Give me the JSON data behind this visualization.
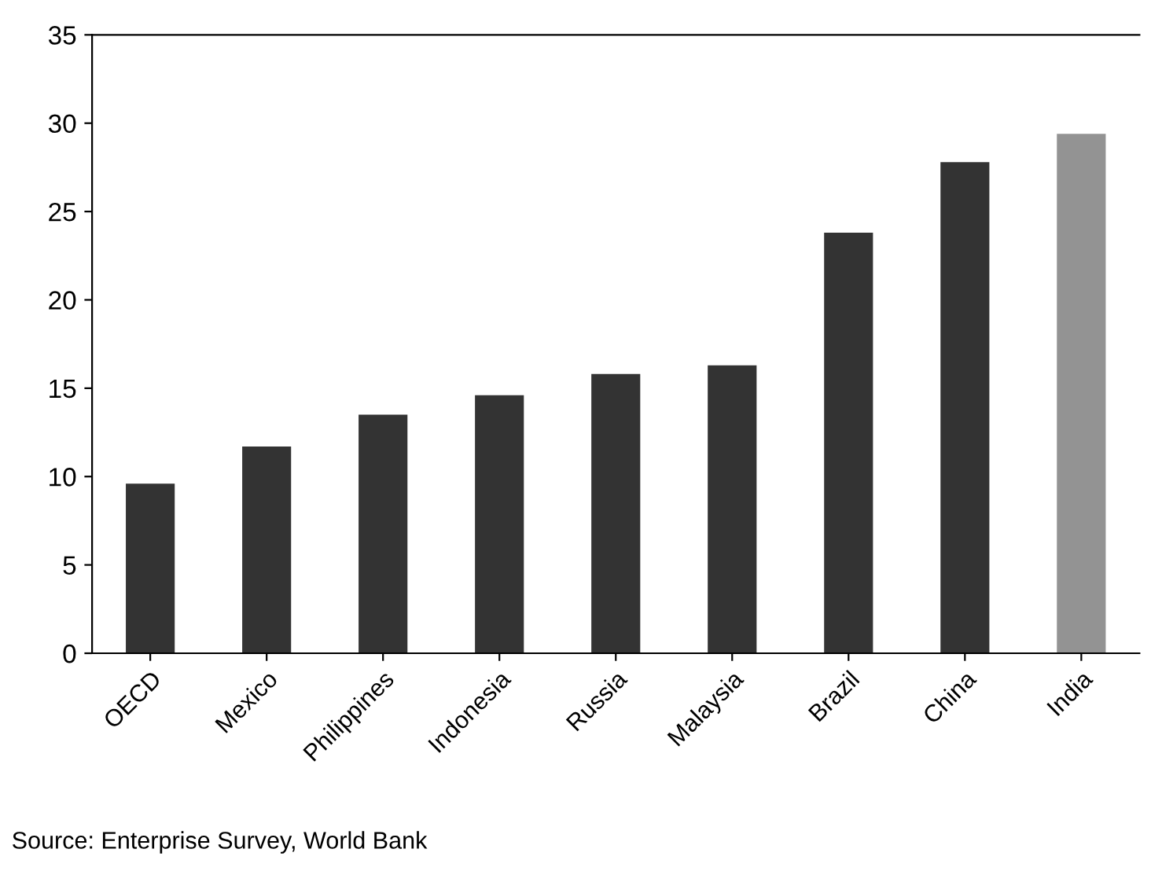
{
  "chart_data": {
    "type": "bar",
    "categories": [
      "OECD",
      "Mexico",
      "Philippines",
      "Indonesia",
      "Russia",
      "Malaysia",
      "Brazil",
      "China",
      "India"
    ],
    "values": [
      9.6,
      11.7,
      13.5,
      14.6,
      15.8,
      16.3,
      23.8,
      27.8,
      29.4
    ],
    "colors": [
      "#333333",
      "#333333",
      "#333333",
      "#333333",
      "#333333",
      "#333333",
      "#333333",
      "#333333",
      "#939393"
    ],
    "ylim": [
      0,
      35
    ],
    "yticks": [
      0,
      5,
      10,
      15,
      20,
      25,
      30,
      35
    ],
    "annotations": [
      "Source: Enterprise Survey, World Bank"
    ]
  }
}
